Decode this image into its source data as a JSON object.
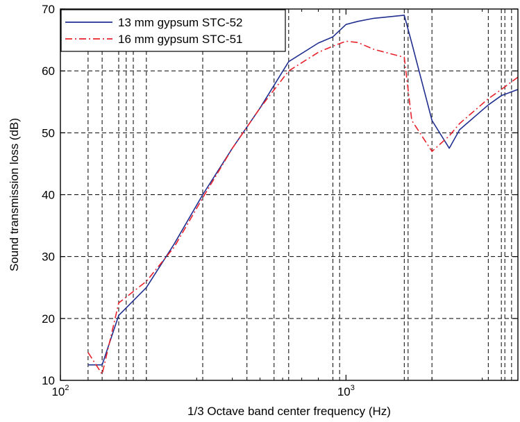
{
  "chart_data": {
    "type": "line",
    "title": "",
    "xlabel": "1/3 Octave band center frequency (Hz)",
    "ylabel": "Sound transmission loss (dB)",
    "x_scale": "log",
    "xlim": [
      100,
      4000
    ],
    "ylim": [
      10,
      70
    ],
    "y_ticks": [
      10,
      20,
      30,
      40,
      50,
      60,
      70
    ],
    "x_major_ticks": [
      {
        "value": 100,
        "base": "10",
        "exp": "2"
      },
      {
        "value": 1000,
        "base": "10",
        "exp": "3"
      }
    ],
    "grid": true,
    "grid_style": "dashed",
    "x_grid_lines": [
      125,
      140,
      160,
      170,
      180,
      200,
      315,
      450,
      560,
      630,
      900,
      950,
      1600,
      1650,
      2000,
      3150,
      3500,
      3600,
      3800
    ],
    "y_grid_lines": [
      20,
      30,
      40,
      50,
      60
    ],
    "legend_position": "top-left",
    "series": [
      {
        "name": "13 mm gypsum STC-52",
        "color": "#1f2e8f",
        "dash": "solid",
        "x": [
          125,
          140,
          160,
          200,
          250,
          315,
          400,
          500,
          630,
          800,
          900,
          1000,
          1100,
          1250,
          1600,
          1700,
          2000,
          2300,
          2500,
          3150,
          3500,
          4000
        ],
        "y": [
          12.5,
          12.5,
          20.5,
          25,
          32,
          40,
          47.5,
          54,
          61.5,
          64.5,
          65.5,
          67.5,
          68,
          68.5,
          69,
          64.5,
          52,
          47.5,
          50.5,
          54.5,
          56,
          57
        ]
      },
      {
        "name": "16 mm gypsum STC-51",
        "color": "#e8202a",
        "dash": "dashdot",
        "x": [
          125,
          140,
          160,
          200,
          250,
          315,
          400,
          500,
          630,
          800,
          900,
          1000,
          1100,
          1250,
          1600,
          1700,
          2000,
          2300,
          2500,
          3150,
          3500,
          4000
        ],
        "y": [
          14.5,
          11,
          22.5,
          26,
          31.5,
          39.5,
          47.5,
          54,
          60,
          63,
          64,
          64.8,
          64.6,
          63.5,
          62.2,
          52,
          47,
          49.5,
          51.5,
          55.5,
          57,
          59
        ]
      }
    ]
  }
}
